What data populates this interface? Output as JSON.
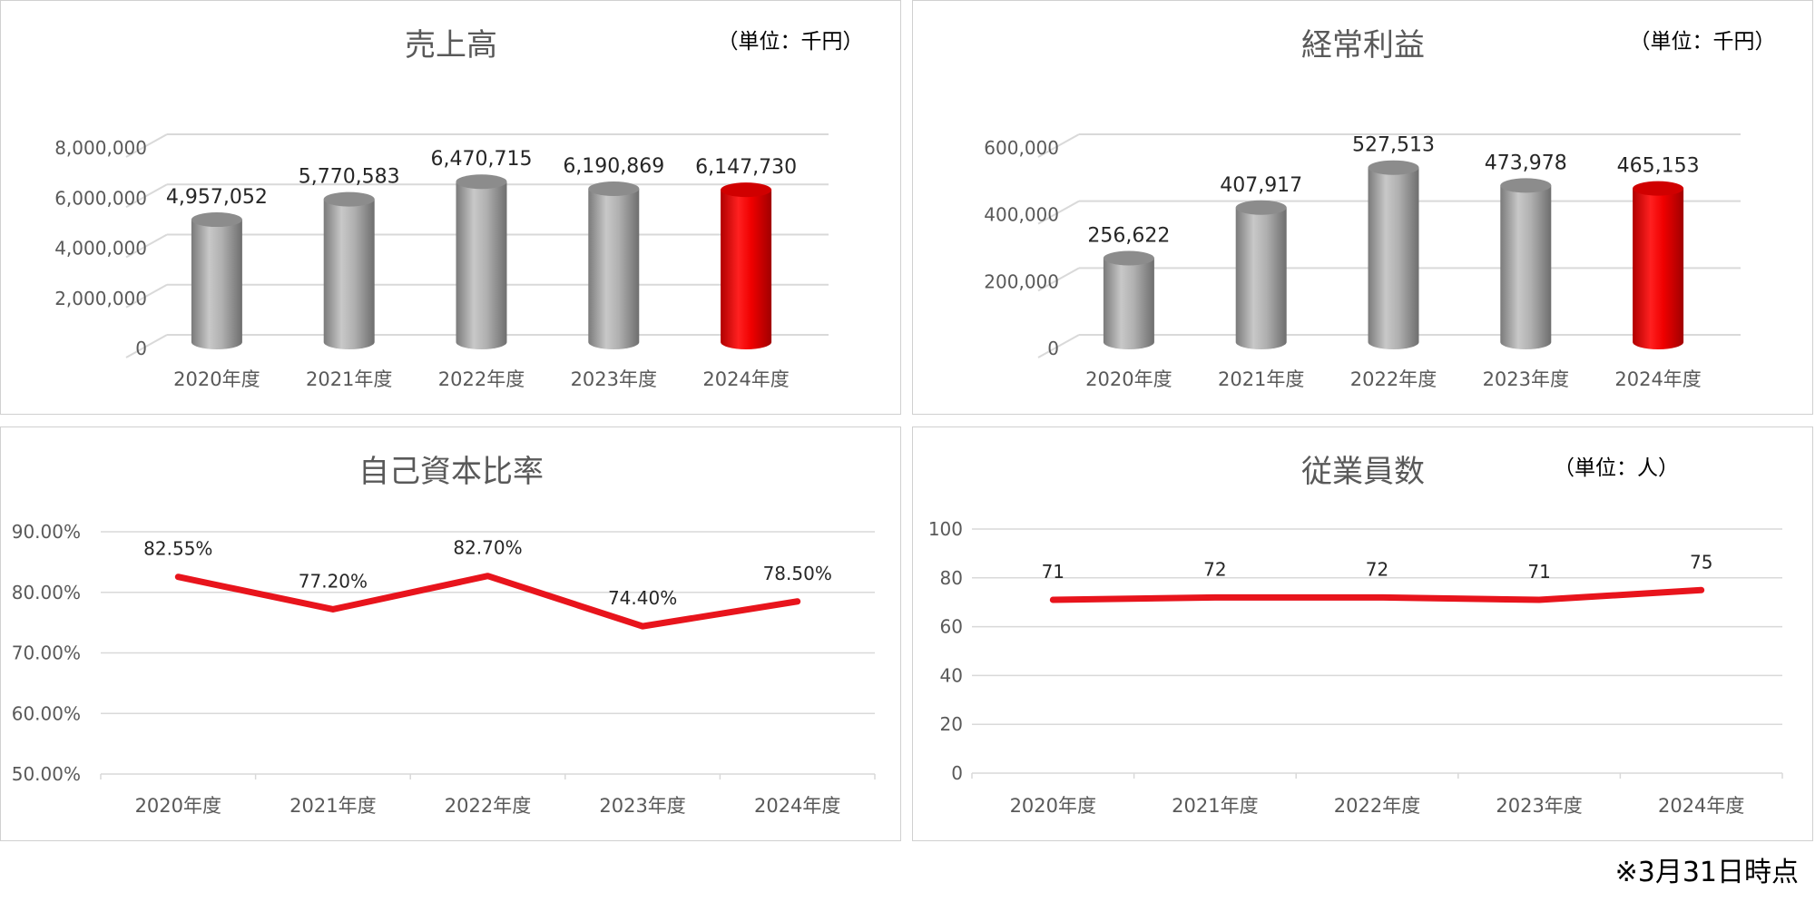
{
  "footnote": "※3月31日時点",
  "colors": {
    "bar": "#a6a6a6",
    "highlight": "#ff0000",
    "line": "#e8141c",
    "grid": "#d9d9d9",
    "text": "#595959"
  },
  "chart_data": [
    {
      "type": "bar",
      "title": "売上高",
      "unit": "（単位：千円）",
      "categories": [
        "2020年度",
        "2021年度",
        "2022年度",
        "2023年度",
        "2024年度"
      ],
      "values": [
        4957052,
        5770583,
        6470715,
        6190869,
        6147730
      ],
      "data_labels": [
        "4,957,052",
        "5,770,583",
        "6,470,715",
        "6,190,869",
        "6,147,730"
      ],
      "yticks": [
        "0",
        "2,000,000",
        "4,000,000",
        "6,000,000",
        "8,000,000"
      ],
      "ylim": [
        0,
        8000000
      ],
      "highlight_index": 4,
      "style": "3d-cylinder"
    },
    {
      "type": "bar",
      "title": "経常利益",
      "unit": "（単位：千円）",
      "categories": [
        "2020年度",
        "2021年度",
        "2022年度",
        "2023年度",
        "2024年度"
      ],
      "values": [
        256622,
        407917,
        527513,
        473978,
        465153
      ],
      "data_labels": [
        "256,622",
        "407,917",
        "527,513",
        "473,978",
        "465,153"
      ],
      "yticks": [
        "0",
        "200,000",
        "400,000",
        "600,000"
      ],
      "ylim": [
        0,
        600000
      ],
      "highlight_index": 4,
      "style": "3d-cylinder"
    },
    {
      "type": "line",
      "title": "自己資本比率",
      "unit": "",
      "categories": [
        "2020年度",
        "2021年度",
        "2022年度",
        "2023年度",
        "2024年度"
      ],
      "values": [
        82.55,
        77.2,
        82.7,
        74.4,
        78.5
      ],
      "data_labels": [
        "82.55%",
        "77.20%",
        "82.70%",
        "74.40%",
        "78.50%"
      ],
      "yticks": [
        "50.00%",
        "60.00%",
        "70.00%",
        "80.00%",
        "90.00%"
      ],
      "ylim": [
        50,
        90
      ]
    },
    {
      "type": "line",
      "title": "従業員数",
      "unit": "（単位：人）",
      "categories": [
        "2020年度",
        "2021年度",
        "2022年度",
        "2023年度",
        "2024年度"
      ],
      "values": [
        71,
        72,
        72,
        71,
        75
      ],
      "data_labels": [
        "71",
        "72",
        "72",
        "71",
        "75"
      ],
      "yticks": [
        "0",
        "20",
        "40",
        "60",
        "80",
        "100"
      ],
      "ylim": [
        0,
        100
      ]
    }
  ]
}
